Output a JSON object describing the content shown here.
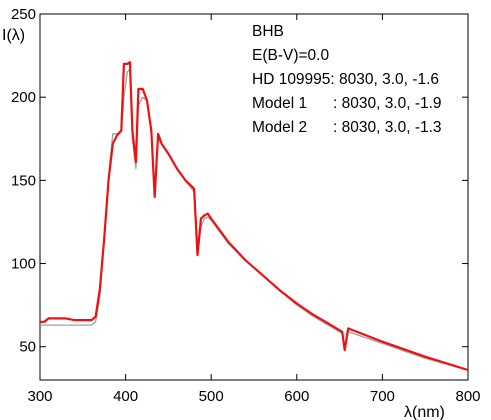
{
  "chart_data": {
    "type": "line",
    "title": "",
    "xlabel": "λ(nm)",
    "ylabel": "I(λ)",
    "xlim": [
      300,
      800
    ],
    "ylim": [
      30,
      250
    ],
    "xticks": [
      300,
      400,
      500,
      600,
      700,
      800
    ],
    "yticks": [
      50,
      100,
      150,
      200,
      250
    ],
    "xtick_labels": [
      "300",
      "400",
      "500",
      "600",
      "700",
      "800"
    ],
    "ytick_labels": [
      "50",
      "100",
      "150",
      "200",
      "250"
    ],
    "grid": false,
    "annotations": [
      "BHB",
      "E(B-V)=0.0",
      "HD 109995: 8030, 3.0, -1.6",
      "Model 1      : 8030, 3.0, -1.9",
      "Model 2      : 8030, 3.0, -1.3"
    ],
    "series": [
      {
        "color": "#a0a0a0",
        "x": [
          300,
          310,
          320,
          330,
          340,
          350,
          360,
          365,
          370,
          375,
          380,
          385,
          390,
          395,
          398,
          402,
          405,
          408,
          412,
          415,
          420,
          425,
          430,
          434,
          438,
          442,
          450,
          460,
          470,
          480,
          484,
          488,
          492,
          496,
          500,
          520,
          540,
          560,
          580,
          600,
          620,
          640,
          653,
          656,
          660,
          700,
          750,
          800
        ],
        "y": [
          63,
          63,
          63,
          63,
          63,
          63,
          63,
          65,
          80,
          115,
          152,
          178,
          178,
          180,
          200,
          215,
          217,
          175,
          157,
          195,
          200,
          198,
          178,
          140,
          175,
          172,
          166,
          157,
          150,
          143,
          105,
          122,
          127,
          128,
          126,
          112,
          102,
          93,
          84,
          75,
          68,
          62,
          58,
          48,
          59,
          52,
          43,
          36
        ]
      },
      {
        "color": "#ee1111",
        "x": [
          300,
          305,
          310,
          315,
          320,
          330,
          340,
          350,
          360,
          365,
          370,
          375,
          380,
          385,
          390,
          395,
          398,
          402,
          405,
          408,
          412,
          415,
          420,
          425,
          430,
          434,
          438,
          442,
          450,
          460,
          470,
          480,
          484,
          488,
          492,
          496,
          500,
          520,
          540,
          560,
          580,
          600,
          620,
          640,
          653,
          656,
          660,
          700,
          750,
          800
        ],
        "y": [
          65,
          65,
          67,
          67,
          67,
          67,
          66,
          66,
          66,
          68,
          85,
          115,
          150,
          172,
          177,
          180,
          220,
          220,
          221,
          180,
          161,
          205,
          205,
          198,
          180,
          140,
          178,
          172,
          166,
          157,
          150,
          145,
          105,
          127,
          129,
          130,
          127,
          113,
          102,
          93,
          84,
          76,
          69,
          63,
          59,
          48,
          61,
          53,
          44,
          36
        ]
      }
    ]
  }
}
